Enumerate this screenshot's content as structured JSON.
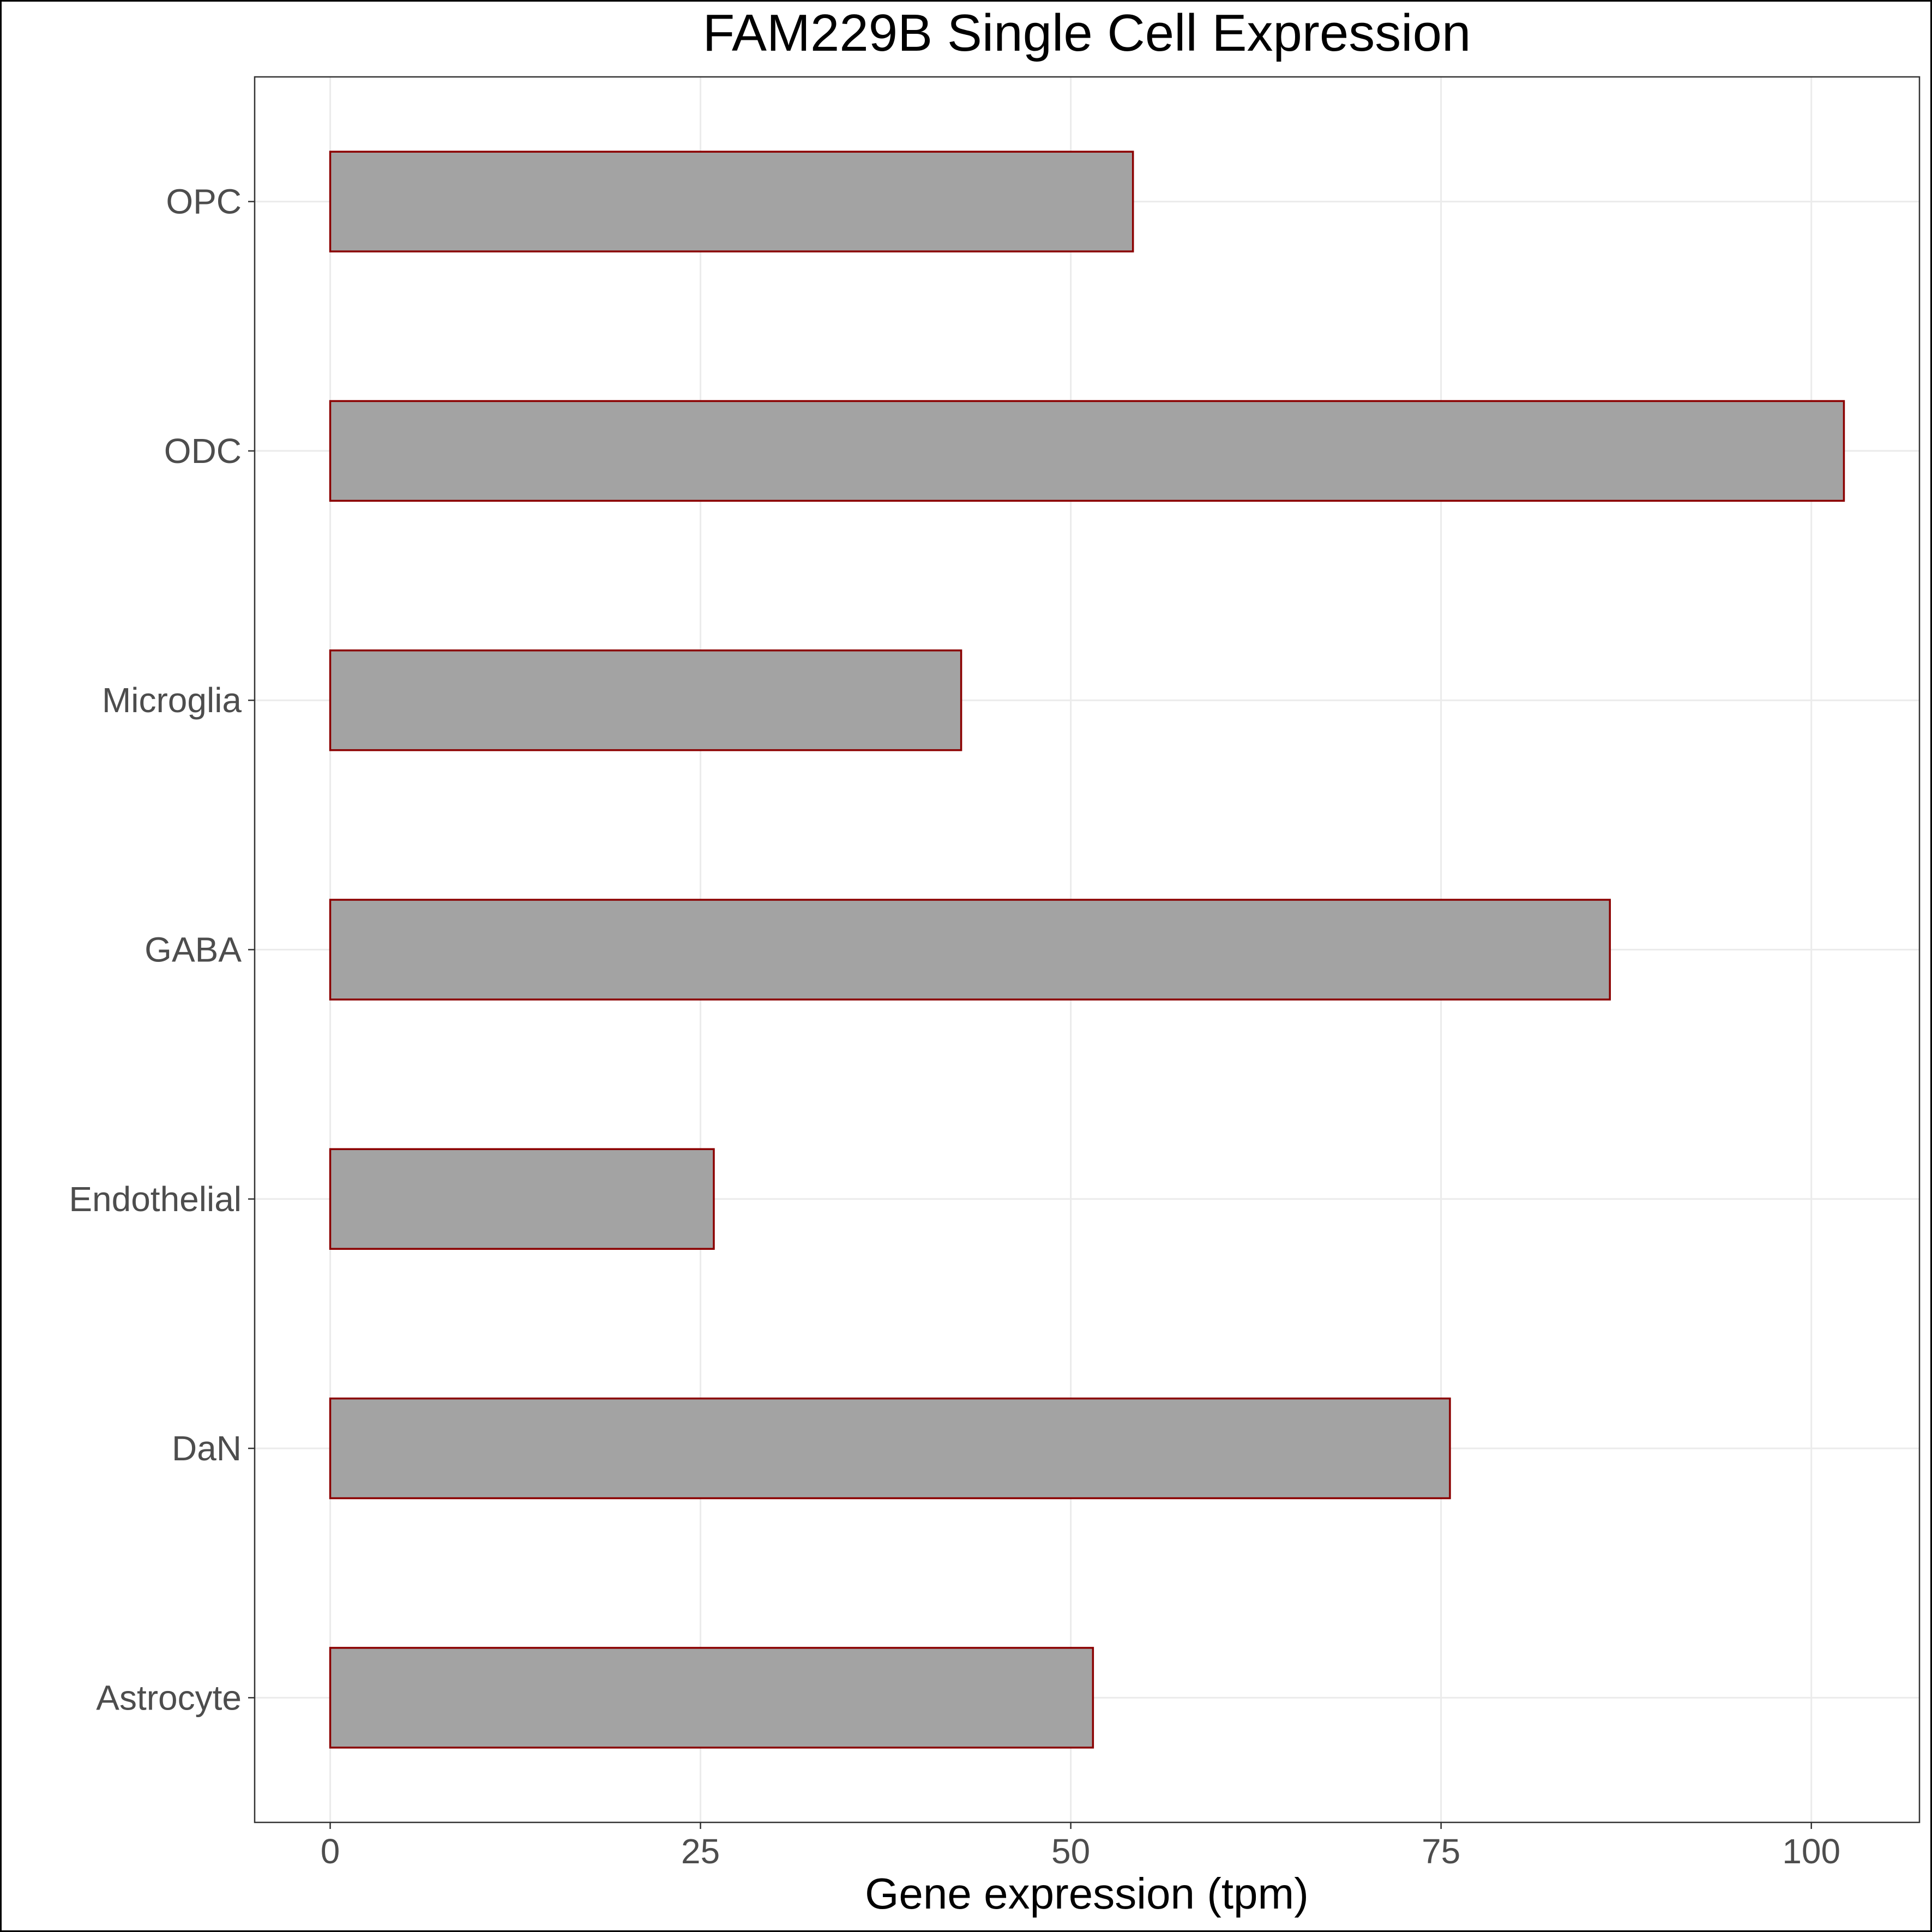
{
  "chart_data": {
    "type": "bar",
    "orientation": "horizontal",
    "title": "FAM229B Single Cell Expression",
    "xlabel": "Gene expression (tpm)",
    "ylabel": "",
    "categories": [
      "OPC",
      "ODC",
      "Microglia",
      "GABA",
      "Endothelial",
      "DaN",
      "Astrocyte"
    ],
    "values": [
      54.2,
      102.2,
      42.6,
      86.4,
      25.9,
      75.6,
      51.5
    ],
    "xlim": [
      -5.1,
      107.3
    ],
    "xticks": [
      0,
      25,
      50,
      75,
      100
    ],
    "xtick_labels": [
      "0",
      "25",
      "50",
      "75",
      "100"
    ],
    "grid": true,
    "colors": {
      "bar_fill": "#a3a3a3",
      "bar_stroke": "#8b0000",
      "grid": "#ebebeb",
      "panel_border": "#333333",
      "outer_border": "#000000"
    }
  }
}
